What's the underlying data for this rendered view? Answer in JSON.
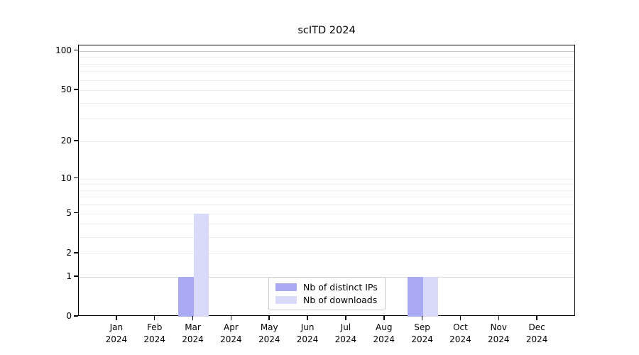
{
  "chart_data": {
    "type": "bar",
    "title": "scITD 2024",
    "categories": [
      "Jan",
      "Feb",
      "Mar",
      "Apr",
      "May",
      "Jun",
      "Jul",
      "Aug",
      "Sep",
      "Oct",
      "Nov",
      "Dec"
    ],
    "year": "2024",
    "series": [
      {
        "name": "Nb of distinct IPs",
        "color": "#aaaaf4",
        "values": [
          0,
          0,
          1,
          0,
          0,
          0,
          0,
          0,
          1,
          0,
          0,
          0
        ]
      },
      {
        "name": "Nb of downloads",
        "color": "#d9d9fa",
        "values": [
          0,
          0,
          5,
          0,
          0,
          0,
          0,
          0,
          1,
          0,
          0,
          0
        ]
      }
    ],
    "yscale": "log1p",
    "ylim": [
      0,
      110
    ],
    "yticks": [
      0,
      1,
      2,
      5,
      10,
      20,
      50,
      100
    ],
    "minor_gridline_values": [
      2,
      3,
      4,
      5,
      6,
      7,
      8,
      9,
      10,
      20,
      30,
      40,
      50,
      60,
      70,
      80,
      90
    ],
    "grid_colors": {
      "minor": "#ededed",
      "one": "#d8d8d8",
      "hundred": "#c5c5c5"
    },
    "xlabel": "",
    "ylabel": "",
    "legend_position": "inside-bottom-center"
  }
}
